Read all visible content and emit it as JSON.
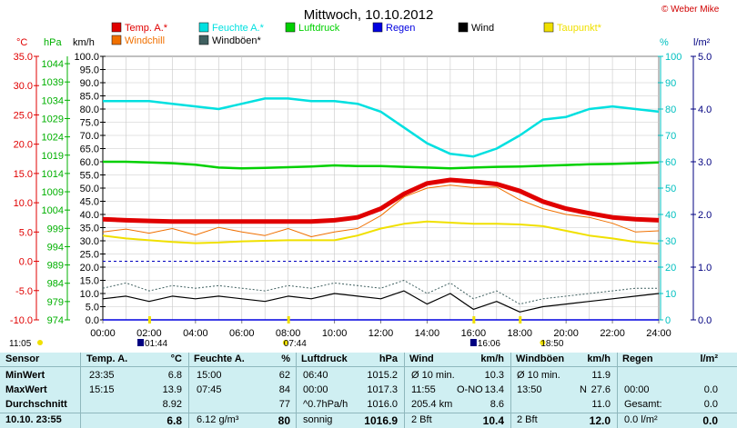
{
  "title": "Mittwoch, 10.10.2012",
  "copyright": "© Weber Mike",
  "chart_data": {
    "type": "line",
    "x_range": [
      0,
      24
    ],
    "x_ticks": [
      "00:00",
      "02:00",
      "04:00",
      "06:00",
      "08:00",
      "10:00",
      "12:00",
      "14:00",
      "16:00",
      "18:00",
      "20:00",
      "22:00",
      "24:00"
    ],
    "axes": {
      "temp": {
        "label": "°C",
        "range": [
          -10,
          35
        ],
        "ticks": [
          "35.0",
          "30.0",
          "25.0",
          "20.0",
          "15.0",
          "10.0",
          "5.0",
          "0.0",
          "-5.0",
          "-10.0"
        ],
        "color": "#e00000"
      },
      "pressure": {
        "label": "hPa",
        "range": [
          974,
          1046
        ],
        "ticks": [
          "1044",
          "1039",
          "1034",
          "1029",
          "1024",
          "1019",
          "1014",
          "1009",
          "1004",
          "999",
          "994",
          "989",
          "984",
          "979",
          "974"
        ],
        "color": "#00b000"
      },
      "wind": {
        "label": "km/h",
        "range": [
          0,
          100
        ],
        "ticks": [
          "100.0",
          "95.0",
          "90.0",
          "85.0",
          "80.0",
          "75.0",
          "70.0",
          "65.0",
          "60.0",
          "55.0",
          "50.0",
          "45.0",
          "40.0",
          "35.0",
          "30.0",
          "25.0",
          "20.0",
          "15.0",
          "10.0",
          "5.0",
          "0.0"
        ],
        "color": "#000000"
      },
      "humidity": {
        "label": "%",
        "range": [
          0,
          100
        ],
        "ticks": [
          "100",
          "90",
          "80",
          "70",
          "60",
          "50",
          "40",
          "30",
          "20",
          "10",
          "0"
        ],
        "color": "#00c0c0"
      },
      "rain": {
        "label": "l/m²",
        "range": [
          0,
          5
        ],
        "ticks": [
          "5.0",
          "4.0",
          "3.0",
          "2.0",
          "1.0",
          "0.0"
        ],
        "color": "#000080"
      }
    },
    "legend": [
      {
        "name": "Temp. A.*",
        "color": "#e00000"
      },
      {
        "name": "Feuchte A.*",
        "color": "#00e0e0"
      },
      {
        "name": "Luftdruck",
        "color": "#00d000"
      },
      {
        "name": "Regen",
        "color": "#0000e0"
      },
      {
        "name": "Wind",
        "color": "#000000"
      },
      {
        "name": "Taupunkt*",
        "color": "#f0e000"
      },
      {
        "name": "Windchill",
        "color": "#f07000"
      },
      {
        "name": "Windböen*",
        "color": "#406060"
      }
    ],
    "series": [
      {
        "name": "Temp. A.*",
        "axis": "temp",
        "x": [
          0,
          1,
          2,
          3,
          4,
          5,
          6,
          7,
          8,
          9,
          10,
          11,
          12,
          13,
          14,
          15,
          16,
          17,
          18,
          19,
          20,
          21,
          22,
          23,
          24
        ],
        "values": [
          7.2,
          7.0,
          6.9,
          6.8,
          6.8,
          6.8,
          6.8,
          6.8,
          6.8,
          6.8,
          7.0,
          7.5,
          9.0,
          11.5,
          13.3,
          13.9,
          13.6,
          13.2,
          12.0,
          10.2,
          9.0,
          8.2,
          7.5,
          7.2,
          7.0
        ]
      },
      {
        "name": "Windchill",
        "axis": "temp",
        "x": [
          0,
          1,
          2,
          3,
          4,
          5,
          6,
          7,
          8,
          9,
          10,
          11,
          12,
          13,
          14,
          15,
          16,
          17,
          18,
          19,
          20,
          21,
          22,
          23,
          24
        ],
        "values": [
          5.0,
          5.5,
          4.8,
          5.6,
          4.5,
          5.8,
          5.0,
          4.4,
          5.6,
          4.2,
          5.0,
          5.6,
          7.8,
          11.0,
          12.5,
          13.0,
          12.6,
          12.7,
          10.5,
          9.0,
          8.0,
          7.5,
          6.5,
          5.0,
          5.2
        ]
      },
      {
        "name": "Taupunkt*",
        "axis": "temp",
        "x": [
          0,
          1,
          2,
          3,
          4,
          5,
          6,
          7,
          8,
          9,
          10,
          11,
          12,
          13,
          14,
          15,
          16,
          17,
          18,
          19,
          20,
          21,
          22,
          23,
          24
        ],
        "values": [
          4.4,
          3.9,
          3.6,
          3.3,
          3.1,
          3.2,
          3.4,
          3.5,
          3.6,
          3.6,
          3.6,
          4.4,
          5.6,
          6.4,
          6.8,
          6.6,
          6.4,
          6.4,
          6.3,
          6.0,
          5.2,
          4.4,
          3.9,
          3.3,
          3.0
        ]
      },
      {
        "name": "Feuchte A.*",
        "axis": "humidity",
        "x": [
          0,
          1,
          2,
          3,
          4,
          5,
          6,
          7,
          8,
          9,
          10,
          11,
          12,
          13,
          14,
          15,
          16,
          17,
          18,
          19,
          20,
          21,
          22,
          23,
          24
        ],
        "values": [
          83,
          83,
          83,
          82,
          81,
          80,
          82,
          84,
          84,
          83,
          83,
          82,
          79,
          73,
          67,
          63,
          62,
          65,
          70,
          76,
          77,
          80,
          81,
          80,
          79
        ]
      },
      {
        "name": "Luftdruck",
        "axis": "pressure",
        "x": [
          0,
          1,
          2,
          3,
          4,
          5,
          6,
          7,
          8,
          9,
          10,
          11,
          12,
          13,
          14,
          15,
          16,
          17,
          18,
          19,
          20,
          21,
          22,
          23,
          24
        ],
        "values": [
          1017.2,
          1017.2,
          1017.0,
          1016.8,
          1016.4,
          1015.6,
          1015.4,
          1015.5,
          1015.7,
          1015.9,
          1016.2,
          1016.0,
          1016.0,
          1015.8,
          1015.6,
          1015.4,
          1015.6,
          1015.8,
          1015.9,
          1016.1,
          1016.3,
          1016.5,
          1016.6,
          1016.8,
          1017.0
        ]
      },
      {
        "name": "Windböen*",
        "axis": "wind",
        "x": [
          0,
          1,
          2,
          3,
          4,
          5,
          6,
          7,
          8,
          9,
          10,
          11,
          12,
          13,
          14,
          15,
          16,
          17,
          18,
          19,
          20,
          21,
          22,
          23,
          24
        ],
        "values": [
          12,
          14,
          11,
          13,
          12,
          13,
          12,
          11,
          13,
          12,
          14,
          13,
          12,
          15,
          10,
          14,
          8,
          11,
          6,
          8,
          9,
          10,
          11,
          12,
          12
        ]
      },
      {
        "name": "Wind",
        "axis": "wind",
        "x": [
          0,
          1,
          2,
          3,
          4,
          5,
          6,
          7,
          8,
          9,
          10,
          11,
          12,
          13,
          14,
          15,
          16,
          17,
          18,
          19,
          20,
          21,
          22,
          23,
          24
        ],
        "values": [
          8,
          9,
          7,
          9,
          8,
          9,
          8,
          7,
          9,
          8,
          10,
          9,
          8,
          11,
          6,
          10,
          4,
          7,
          3,
          5,
          6,
          7,
          8,
          9,
          10
        ]
      },
      {
        "name": "Regen",
        "axis": "rain",
        "x": [
          0,
          24
        ],
        "values": [
          0,
          0
        ]
      }
    ],
    "reference_line": {
      "axis": "temp",
      "value": 0,
      "color": "#0000c0"
    },
    "markers": {
      "above_axis": [
        "02:00",
        "08:00",
        "16:00",
        "18:00"
      ],
      "below_axis": [
        {
          "time": "11:05",
          "x_hours": 0,
          "icon": "sun"
        },
        {
          "time": "01:44",
          "x_hours": 1.73,
          "icon": "moon"
        },
        {
          "time": "07:44",
          "x_hours": 7.73,
          "icon": "sun"
        },
        {
          "time": "16:06",
          "x_hours": 16.1,
          "icon": "moon"
        },
        {
          "time": "18:50",
          "x_hours": 18.83,
          "icon": "sun"
        }
      ]
    }
  },
  "stats": {
    "headers": {
      "sensor": "Sensor",
      "temp": "Temp. A.",
      "temp_unit": "°C",
      "hum": "Feuchte A.",
      "hum_unit": "%",
      "press": "Luftdruck",
      "press_unit": "hPa",
      "wind": "Wind",
      "wind_unit": "km/h",
      "gust": "Windböen",
      "gust_unit": "km/h",
      "rain": "Regen",
      "rain_unit": "l/m²"
    },
    "rows": [
      {
        "label": "MinWert",
        "temp_t": "23:35",
        "temp_v": "6.8",
        "hum_t": "15:00",
        "hum_v": "62",
        "press_t": "06:40",
        "press_v": "1015.2",
        "wind_t": "Ø 10 min.",
        "wind_v": "10.3",
        "gust_t": "Ø 10 min.",
        "gust_v": "11.9",
        "rain_t": "",
        "rain_v": ""
      },
      {
        "label": "MaxWert",
        "temp_t": "15:15",
        "temp_v": "13.9",
        "hum_t": "07:45",
        "hum_v": "84",
        "press_t": "00:00",
        "press_v": "1017.3",
        "wind_t": "11:55",
        "wind_m": "O-NO",
        "wind_v": "13.4",
        "gust_t": "13:50",
        "gust_m": "N",
        "gust_v": "27.6",
        "rain_t": "00:00",
        "rain_v": "0.0"
      },
      {
        "label": "Durchschnitt",
        "temp_t": "",
        "temp_v": "8.92",
        "hum_t": "",
        "hum_v": "77",
        "press_t": "^0.7hPa/h",
        "press_v": "1016.0",
        "wind_t": "205.4 km",
        "wind_v": "8.6",
        "gust_t": "",
        "gust_v": "11.0",
        "rain_t": "Gesamt:",
        "rain_v": "0.0"
      },
      {
        "label": "10.10.  23:55",
        "temp_t": "",
        "temp_v": "6.8",
        "hum_t": "6.12 g/m³",
        "hum_v": "80",
        "press_t": "sonnig",
        "press_v": "1016.9",
        "wind_t": "2 Bft",
        "wind_v": "10.4",
        "gust_t": "2 Bft",
        "gust_v": "12.0",
        "rain_t": "0.0 l/m²",
        "rain_v": "0.0"
      }
    ]
  }
}
